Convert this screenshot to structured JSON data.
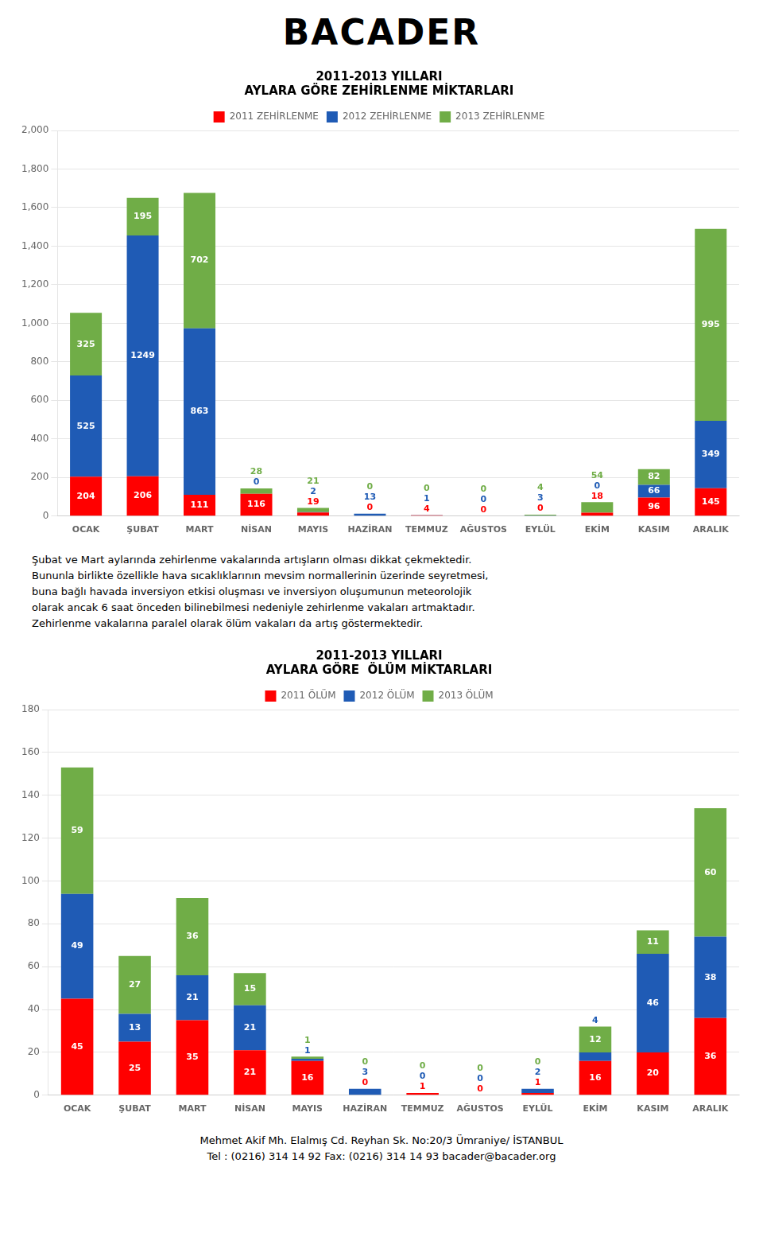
{
  "header": "BACADER",
  "paragraph": [
    "Şubat ve Mart aylarında zehirlenme vakalarında artışların olması dikkat çekmektedir.",
    "Bununla birlikte özellikle hava sıcaklıklarının mevsim normallerinin üzerinde seyretmesi,",
    "buna bağlı havada inversiyon etkisi oluşması ve inversiyon oluşumunun meteorolojik",
    "olarak ancak 6 saat önceden bilinebilmesi nedeniyle zehirlenme vakaları artmaktadır.",
    "Zehirlenme vakalarına paralel olarak ölüm vakaları da artış göstermektedir."
  ],
  "footer": [
    "Mehmet Akif Mh. Elalmış Cd. Reyhan Sk. No:20/3 Ümraniye/ İSTANBUL",
    "Tel : (0216) 314 14 92   Fax: (0216) 314 14 93   bacader@bacader.org"
  ],
  "chart_data": [
    {
      "type": "bar",
      "stacked": true,
      "title": "2011-2013 YILLARI\nAYLARA GÖRE ZEHİRLENME MİKTARLARI",
      "categories": [
        "OCAK",
        "ŞUBAT",
        "MART",
        "NİSAN",
        "MAYIS",
        "HAZİRAN",
        "TEMMUZ",
        "AĞUSTOS",
        "EYLÜL",
        "EKİM",
        "KASIM",
        "ARALIK"
      ],
      "series": [
        {
          "name": "2011 ZEHİRLENME",
          "color": "#FF0000",
          "values": [
            204,
            206,
            111,
            116,
            19,
            0,
            4,
            0,
            0,
            18,
            96,
            145
          ]
        },
        {
          "name": "2012 ZEHİRLENME",
          "color": "#1F5BB5",
          "values": [
            525,
            1249,
            863,
            0,
            2,
            13,
            1,
            0,
            3,
            0,
            66,
            349
          ]
        },
        {
          "name": "2013 ZEHİRLENME",
          "color": "#70AD47",
          "values": [
            325,
            195,
            702,
            28,
            21,
            0,
            0,
            0,
            4,
            54,
            82,
            995
          ]
        }
      ],
      "ylim": [
        0,
        2000
      ],
      "yticks": [
        0,
        200,
        400,
        600,
        800,
        1000,
        1200,
        1400,
        1600,
        1800,
        2000
      ],
      "grid": true,
      "legend": "top",
      "data_labels": true
    },
    {
      "type": "bar",
      "stacked": true,
      "title": "2011-2013 YILLARI\nAYLARA GÖRE  ÖLÜM MİKTARLARI",
      "categories": [
        "OCAK",
        "ŞUBAT",
        "MART",
        "NİSAN",
        "MAYIS",
        "HAZİRAN",
        "TEMMUZ",
        "AĞUSTOS",
        "EYLÜL",
        "EKİM",
        "KASIM",
        "ARALIK"
      ],
      "series": [
        {
          "name": "2011 ÖLÜM",
          "color": "#FF0000",
          "values": [
            45,
            25,
            35,
            21,
            16,
            0,
            1,
            0,
            1,
            16,
            20,
            36
          ]
        },
        {
          "name": "2012 ÖLÜM",
          "color": "#1F5BB5",
          "values": [
            49,
            13,
            21,
            21,
            1,
            3,
            0,
            0,
            2,
            4,
            46,
            38
          ]
        },
        {
          "name": "2013 ÖLÜM",
          "color": "#70AD47",
          "values": [
            59,
            27,
            36,
            15,
            1,
            0,
            0,
            0,
            0,
            12,
            11,
            60
          ]
        }
      ],
      "ylim": [
        0,
        180
      ],
      "yticks": [
        0,
        20,
        40,
        60,
        80,
        100,
        120,
        140,
        160,
        180
      ],
      "grid": true,
      "legend": "top",
      "data_labels": true
    }
  ]
}
